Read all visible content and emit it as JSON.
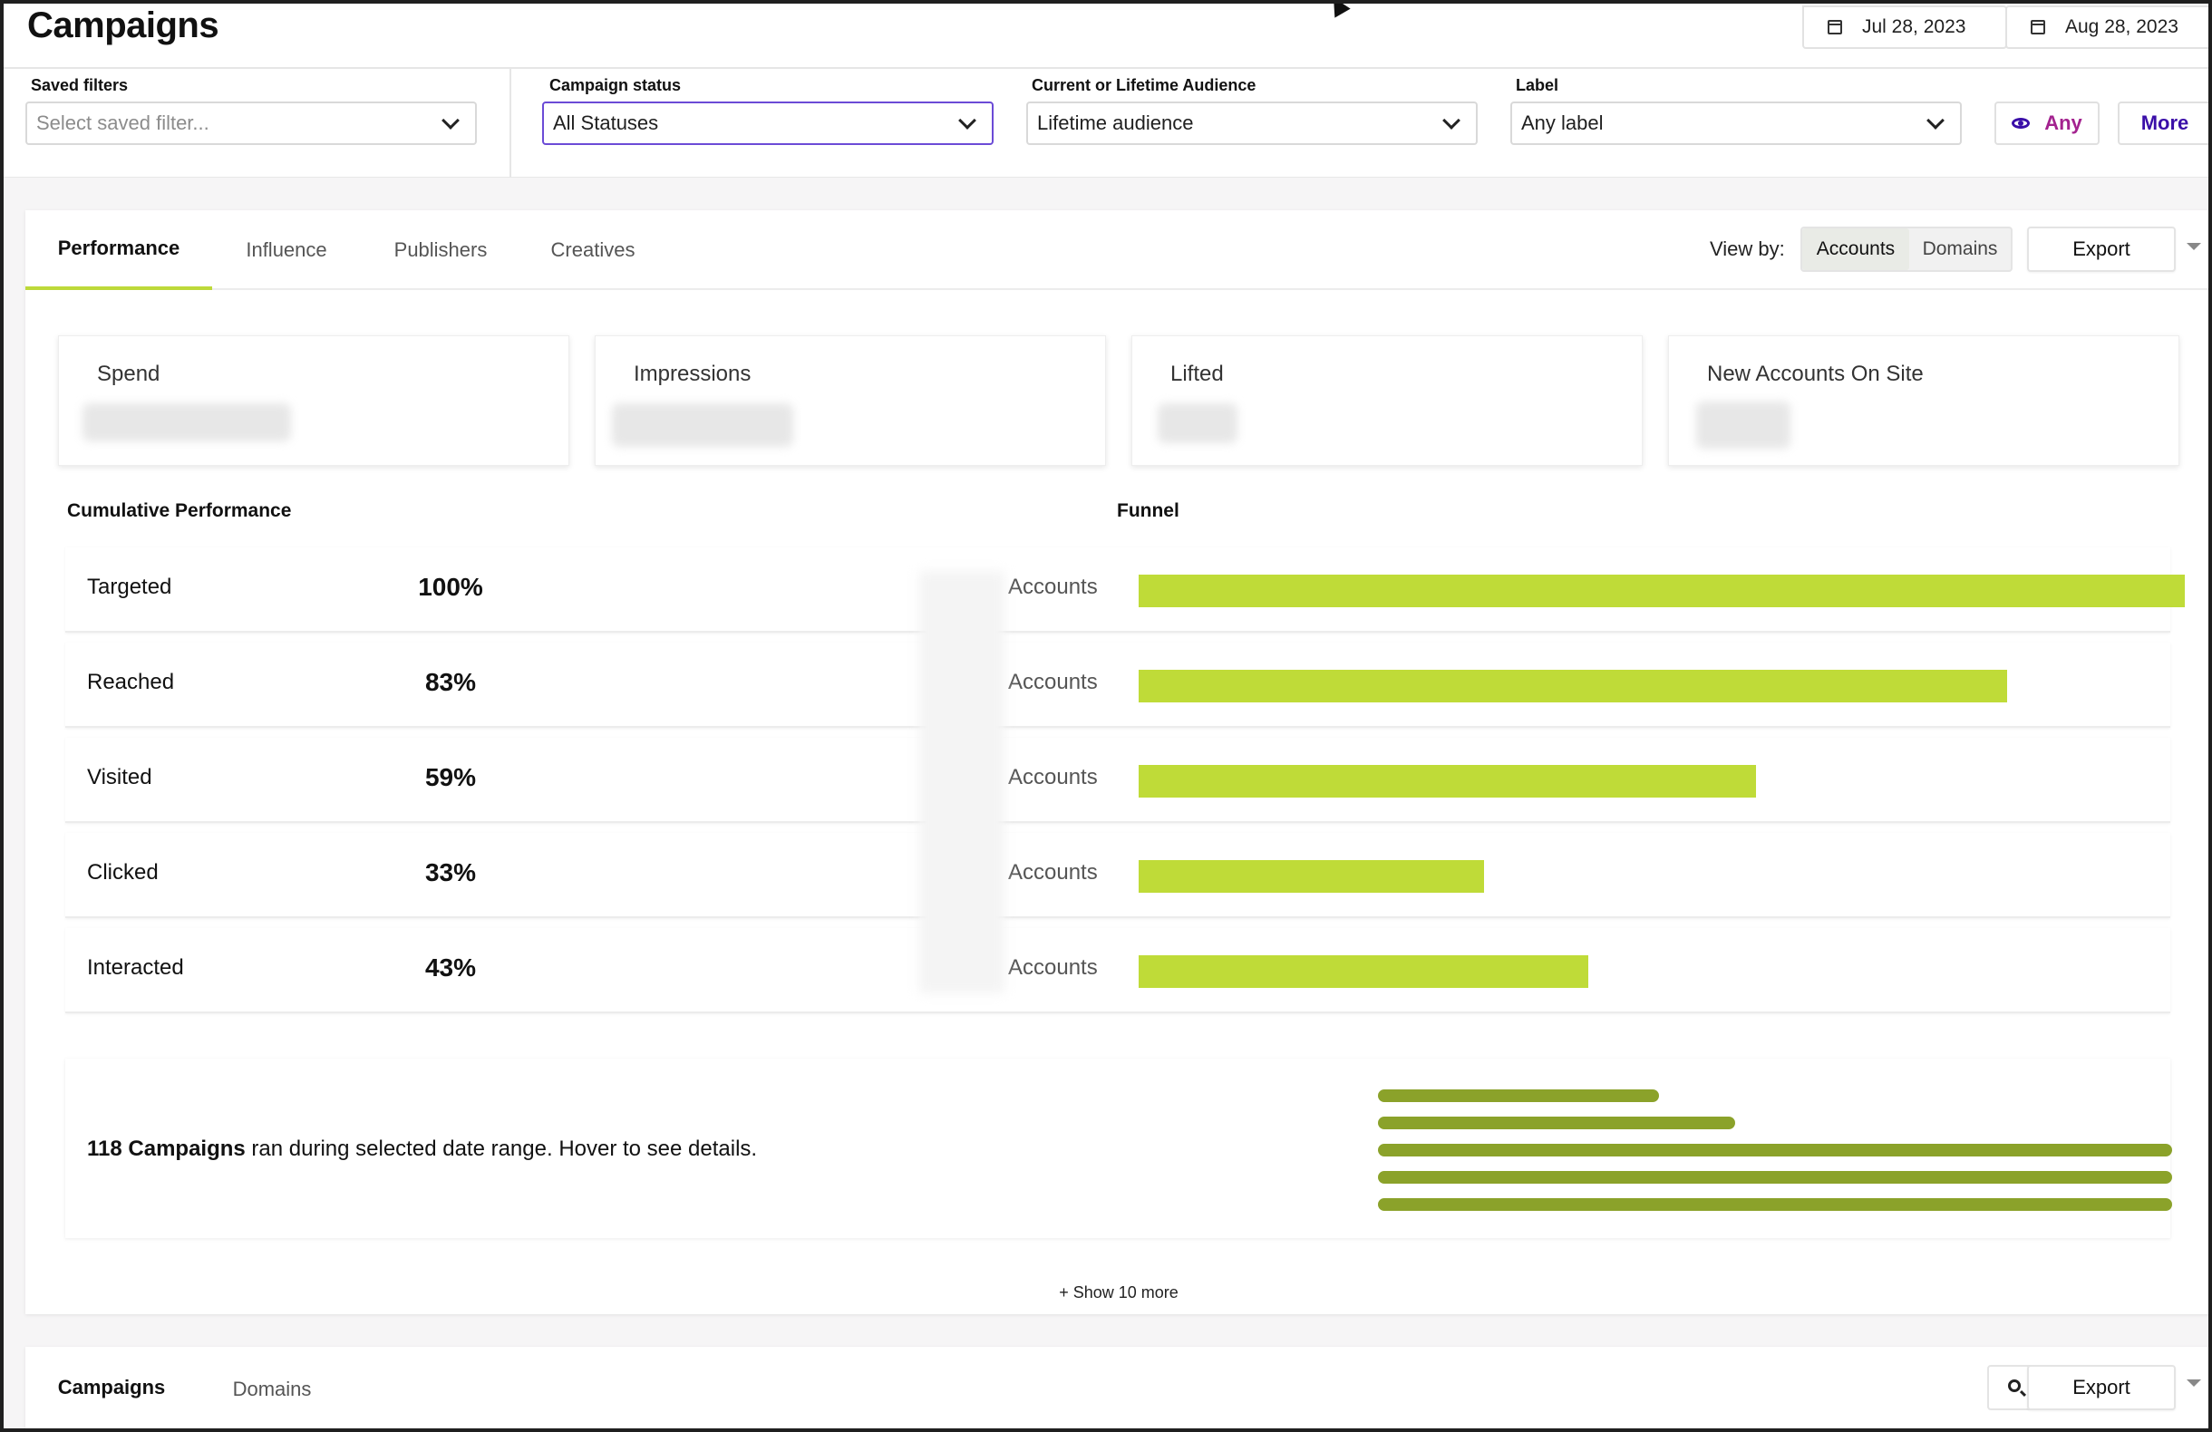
{
  "header": {
    "title": "Campaigns",
    "date_start": "Jul 28, 2023",
    "date_end": "Aug 28, 2023"
  },
  "filters": {
    "saved_filters": {
      "label": "Saved filters",
      "placeholder": "Select saved filter..."
    },
    "campaign_status": {
      "label": "Campaign status",
      "value": "All Statuses"
    },
    "audience": {
      "label": "Current or Lifetime Audience",
      "value": "Lifetime audience"
    },
    "label": {
      "label": "Label",
      "value": "Any label"
    },
    "any_button": "Any",
    "more_button": "More"
  },
  "tabs": [
    "Performance",
    "Influence",
    "Publishers",
    "Creatives"
  ],
  "active_tab": "Performance",
  "view_by": {
    "label": "View by:",
    "options": [
      "Accounts",
      "Domains"
    ],
    "selected": "Accounts"
  },
  "export_label": "Export",
  "metrics": [
    "Spend",
    "Impressions",
    "Lifted",
    "New Accounts On Site"
  ],
  "cumulative_title": "Cumulative Performance",
  "funnel_title": "Funnel",
  "funnel": [
    {
      "name": "Targeted",
      "pct": "100%",
      "fraction": 1.0,
      "unit": "Accounts"
    },
    {
      "name": "Reached",
      "pct": "83%",
      "fraction": 0.83,
      "unit": "Accounts"
    },
    {
      "name": "Visited",
      "pct": "59%",
      "fraction": 0.59,
      "unit": "Accounts"
    },
    {
      "name": "Clicked",
      "pct": "33%",
      "fraction": 0.33,
      "unit": "Accounts"
    },
    {
      "name": "Interacted",
      "pct": "43%",
      "fraction": 0.43,
      "unit": "Accounts"
    }
  ],
  "campaigns_summary": {
    "count_text": "118 Campaigns",
    "rest_text": " ran during selected date range. Hover to see details."
  },
  "show_more": "+ Show 10 more",
  "bottom_tabs": [
    "Campaigns",
    "Domains"
  ],
  "colors": {
    "funnel_bar": "#bfdb38",
    "timeline_bar": "#8ba22a",
    "tab_underline": "#bdd93a",
    "any_text": "#a3228f",
    "more_text": "#3a0ea8"
  }
}
